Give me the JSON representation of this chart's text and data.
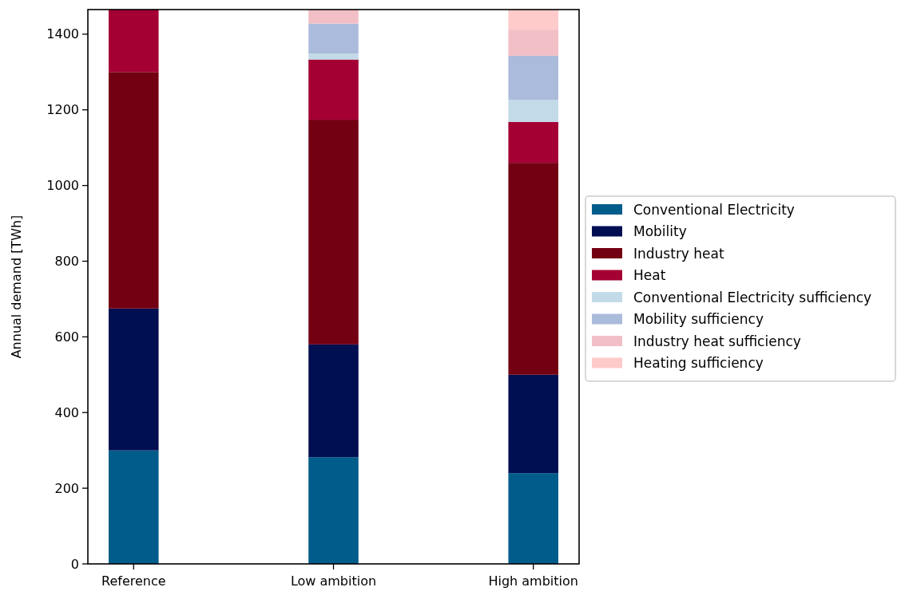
{
  "chart_data": {
    "type": "bar",
    "stacked": true,
    "ylabel": "Annual demand [TWh]",
    "categories": [
      "Reference",
      "Low ambition",
      "High ambition"
    ],
    "ylim": [
      0,
      1465
    ],
    "yticks": [
      0,
      200,
      400,
      600,
      800,
      1000,
      1200,
      1400
    ],
    "legend": "right",
    "grid": false,
    "series": [
      {
        "name": "Conventional Electricity",
        "color": "#005c8b",
        "values": [
          300,
          282,
          240
        ]
      },
      {
        "name": "Mobility",
        "color": "#000f52",
        "values": [
          375,
          298,
          260
        ]
      },
      {
        "name": "Industry heat",
        "color": "#730012",
        "values": [
          625,
          594,
          560
        ]
      },
      {
        "name": "Heat",
        "color": "#a50034",
        "values": [
          165,
          159,
          108
        ]
      },
      {
        "name": "Conventional Electricity sufficiency",
        "color": "#c3dbe8",
        "values": [
          0,
          16,
          58
        ]
      },
      {
        "name": "Mobility sufficiency",
        "color": "#abbbdb",
        "values": [
          0,
          79,
          117
        ]
      },
      {
        "name": "Industry heat sufficiency",
        "color": "#f2bfc6",
        "values": [
          0,
          37,
          69
        ]
      },
      {
        "name": "Heating sufficiency",
        "color": "#ffcaca",
        "values": [
          0,
          0,
          53
        ]
      }
    ]
  }
}
